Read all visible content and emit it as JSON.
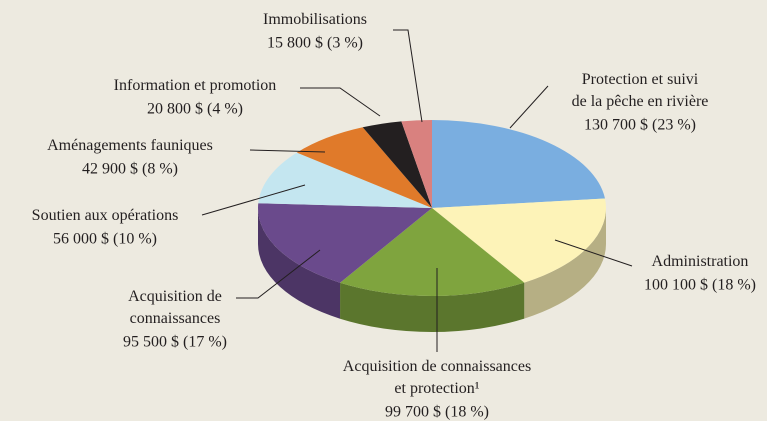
{
  "chart_data": {
    "type": "pie3d",
    "categories": [
      "Protection et suivi\nde la pêche en rivière",
      "Administration",
      "Acquisition de connaissances\net protection¹",
      "Acquisition de\nconnaissances",
      "Soutien aux opérations",
      "Aménagements fauniques",
      "Information et promotion",
      "Immobilisations"
    ],
    "values": [
      130700,
      100100,
      99700,
      95500,
      56000,
      42900,
      20800,
      15800
    ],
    "value_labels": [
      "130 700 $ (23 %)",
      "100 100 $ (18 %)",
      "99 700 $ (18 %)",
      "95 500 $ (17 %)",
      "56 000 $ (10 %)",
      "42 900 $ (8 %)",
      "20 800 $ (4 %)",
      "15 800 $ (3 %)"
    ],
    "colors": [
      "#7aaee0",
      "#fdf3b8",
      "#7fa43e",
      "#6a4a8c",
      "#c4e6f0",
      "#e07a2a",
      "#231f20",
      "#d9817f"
    ]
  }
}
